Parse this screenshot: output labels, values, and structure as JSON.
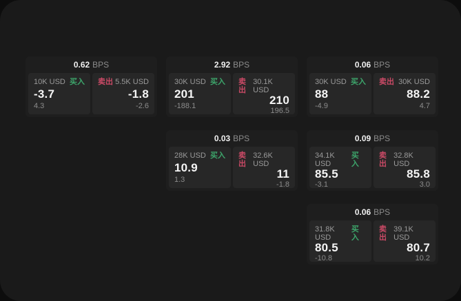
{
  "page": {
    "background_color": "#0d0d0d",
    "canvas_color": "#1a1a1a"
  },
  "colors": {
    "card_background": "#1e1e1e",
    "panel_background": "#272727",
    "buy_green": "#3da56b",
    "sell_red": "#ca4a66",
    "primary_text": "#f5f5f5",
    "secondary_text": "#9a9a9a"
  },
  "labels": {
    "bps_unit": "BPS",
    "buy": "买入",
    "sell": "卖出"
  },
  "cards": [
    {
      "bps": "0.62",
      "col": 0,
      "row": 0,
      "buy": {
        "amount": "10K USD",
        "price": "-3.7",
        "delta": "4.3"
      },
      "sell": {
        "amount": "5.5K USD",
        "price": "-1.8",
        "delta": "-2.6"
      }
    },
    {
      "bps": "2.92",
      "col": 1,
      "row": 0,
      "buy": {
        "amount": "30K USD",
        "price": "201",
        "delta": "-188.1"
      },
      "sell": {
        "amount": "30.1K USD",
        "price": "210",
        "delta": "196.5"
      }
    },
    {
      "bps": "0.06",
      "col": 2,
      "row": 0,
      "buy": {
        "amount": "30K USD",
        "price": "88",
        "delta": "-4.9"
      },
      "sell": {
        "amount": "30K USD",
        "price": "88.2",
        "delta": "4.7"
      }
    },
    {
      "bps": "0.03",
      "col": 1,
      "row": 1,
      "buy": {
        "amount": "28K USD",
        "price": "10.9",
        "delta": "1.3"
      },
      "sell": {
        "amount": "32.6K USD",
        "price": "11",
        "delta": "-1.8"
      }
    },
    {
      "bps": "0.09",
      "col": 2,
      "row": 1,
      "buy": {
        "amount": "34.1K USD",
        "price": "85.5",
        "delta": "-3.1"
      },
      "sell": {
        "amount": "32.8K USD",
        "price": "85.8",
        "delta": "3.0"
      }
    },
    {
      "bps": "0.06",
      "col": 2,
      "row": 2,
      "buy": {
        "amount": "31.8K USD",
        "price": "80.5",
        "delta": "-10.8"
      },
      "sell": {
        "amount": "39.1K USD",
        "price": "80.7",
        "delta": "10.2"
      }
    }
  ]
}
